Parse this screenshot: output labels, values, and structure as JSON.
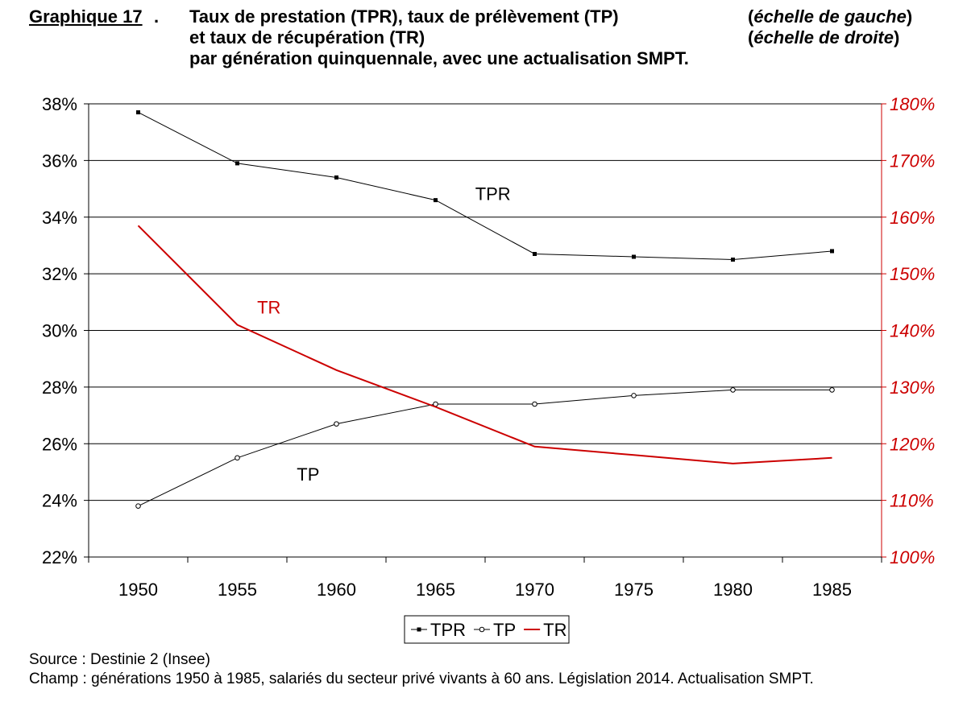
{
  "header": {
    "label": "Graphique 17",
    "label_suffix": ".",
    "title_lines": [
      "Taux de prestation (TPR), taux de prélèvement (TP)",
      "et taux de récupération (TR)",
      "par génération quinquennale, avec une actualisation SMPT."
    ],
    "scale_notes": [
      {
        "open": "(",
        "text": "échelle de gauche",
        "close": ")"
      },
      {
        "open": "(",
        "text": "échelle de droite",
        "close": ")"
      }
    ]
  },
  "chart_data": {
    "type": "line",
    "x": [
      1950,
      1955,
      1960,
      1965,
      1970,
      1975,
      1980,
      1985
    ],
    "x_tick_labels": [
      "1950",
      "1955",
      "1960",
      "1965",
      "1970",
      "1975",
      "1980",
      "1985"
    ],
    "left_axis": {
      "ylim": [
        22,
        38
      ],
      "ticks": [
        22,
        24,
        26,
        28,
        30,
        32,
        34,
        36,
        38
      ],
      "tick_labels": [
        "22%",
        "24%",
        "26%",
        "28%",
        "30%",
        "32%",
        "34%",
        "36%",
        "38%"
      ],
      "color": "#000000"
    },
    "right_axis": {
      "ylim": [
        100,
        180
      ],
      "ticks": [
        100,
        110,
        120,
        130,
        140,
        150,
        160,
        170,
        180
      ],
      "tick_labels": [
        "100%",
        "110%",
        "120%",
        "130%",
        "140%",
        "150%",
        "160%",
        "170%",
        "180%"
      ],
      "color": "#cc0000"
    },
    "grid": "horizontal",
    "series": [
      {
        "name": "TPR",
        "axis": "left",
        "color": "#000000",
        "marker": "square",
        "values": [
          37.7,
          35.9,
          35.4,
          34.6,
          32.7,
          32.6,
          32.5,
          32.8
        ]
      },
      {
        "name": "TP",
        "axis": "left",
        "color": "#000000",
        "marker": "circle",
        "values": [
          23.8,
          25.5,
          26.7,
          27.4,
          27.4,
          27.7,
          27.9,
          27.9
        ]
      },
      {
        "name": "TR",
        "axis": "right",
        "color": "#cc0000",
        "marker": "none",
        "values": [
          158.5,
          141.0,
          133.0,
          126.5,
          119.5,
          118.0,
          116.5,
          117.5
        ]
      }
    ],
    "annotations": [
      {
        "text": "TPR",
        "series": "TPR",
        "at_x": 1967,
        "at_value": 34.6
      },
      {
        "text": "TR",
        "series": "TR",
        "at_x": 1956,
        "at_value": 143.0
      },
      {
        "text": "TP",
        "series": "TP",
        "at_x": 1958,
        "at_value": 24.7
      }
    ],
    "legend": {
      "position": "bottom-center",
      "entries": [
        "TPR",
        "TP",
        "TR"
      ]
    }
  },
  "footer": {
    "source": "Source : Destinie 2 (Insee)",
    "champ": "Champ : générations 1950 à 1985, salariés du secteur privé vivants à 60 ans. Législation 2014. Actualisation SMPT."
  }
}
